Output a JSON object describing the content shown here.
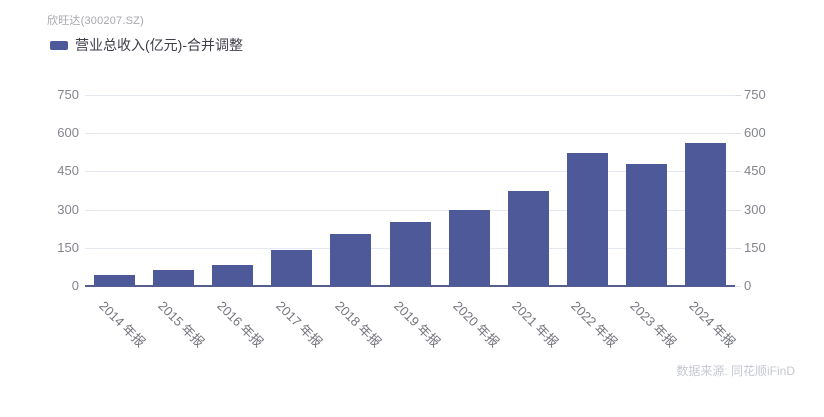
{
  "header": {
    "title": "欣旺达(300207.SZ)"
  },
  "legend": {
    "label": "营业总收入(亿元)-合并调整"
  },
  "source": {
    "text": "数据来源: 同花顺iFinD"
  },
  "colors": {
    "bar": "#4d5998",
    "axis_line": "#565e8c",
    "gridline": "#e4e8f1",
    "right_tick": "#d9deea"
  },
  "chart_data": {
    "type": "bar",
    "title": "欣旺达(300207.SZ)",
    "series_name": "营业总收入(亿元)-合并调整",
    "unit": "亿元",
    "categories": [
      "2014 年报",
      "2015 年报",
      "2016 年报",
      "2017 年报",
      "2018 年报",
      "2019 年报",
      "2020 年报",
      "2021 年报",
      "2022 年报",
      "2023 年报",
      "2024 年报"
    ],
    "values": [
      42,
      64,
      81,
      140,
      203,
      252,
      297,
      374,
      522,
      479,
      560
    ],
    "ylim": [
      0,
      750
    ],
    "yticks": [
      0,
      150,
      300,
      450,
      600,
      750
    ],
    "grid": true,
    "legend_position": "top-left",
    "x_label_rotation": 45,
    "dual_y_axis": true
  }
}
